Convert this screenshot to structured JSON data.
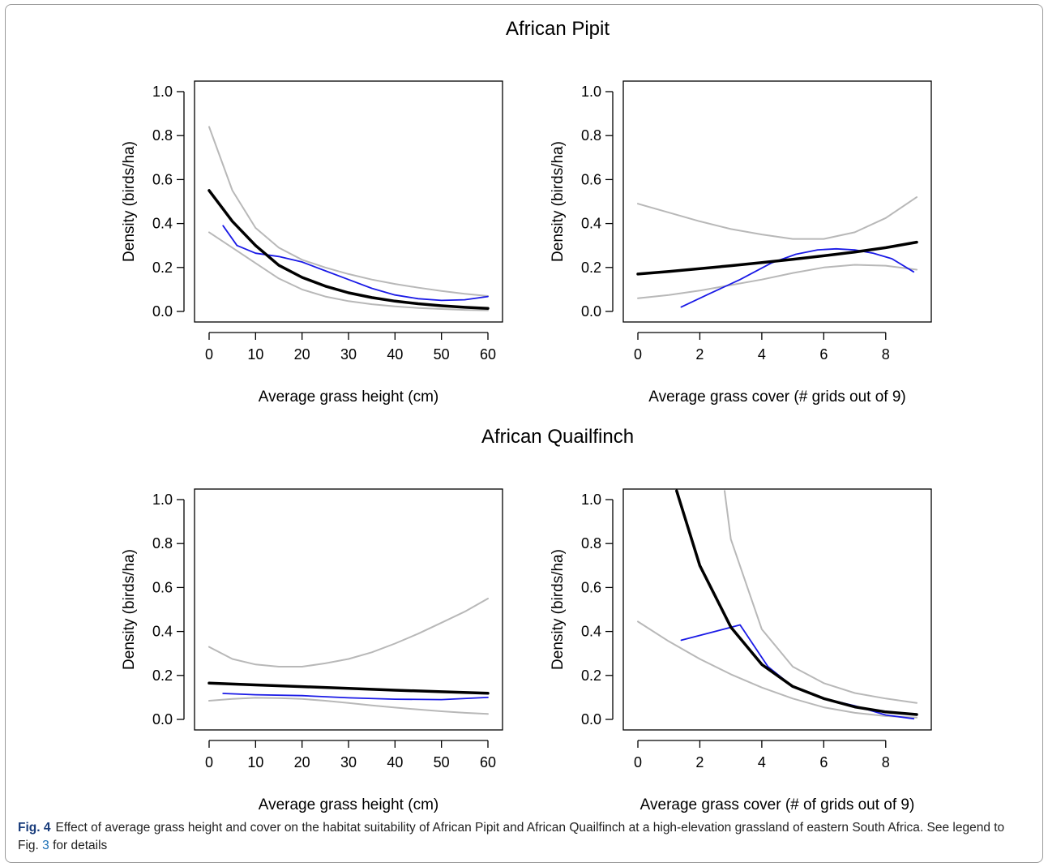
{
  "figure": {
    "section_titles": [
      "African Pipit",
      "African Quailfinch"
    ],
    "caption": {
      "label": "Fig. 4",
      "text_before": "Effect of average grass height and cover on the habitat suitability of African Pipit and African Quailfinch at a high-elevation grassland of eastern South Africa. See legend to Fig. ",
      "ref": "3",
      "text_after": " for details"
    }
  },
  "colors": {
    "fit": "#000000",
    "ci": "#b8b8b8",
    "observed": "#1a1ae6"
  },
  "chart_data": [
    {
      "type": "line",
      "panel": "African Pipit - grass height",
      "xlabel": "Average grass height (cm)",
      "ylabel": "Density (birds/ha)",
      "xlim": [
        0,
        60
      ],
      "ylim": [
        0,
        1.0
      ],
      "xticks": [
        0,
        10,
        20,
        30,
        40,
        50,
        60
      ],
      "yticks": [
        "0.0",
        "0.2",
        "0.4",
        "0.6",
        "0.8",
        "1.0"
      ],
      "grid": false,
      "series": [
        {
          "role": "fit",
          "x": [
            0,
            5,
            10,
            15,
            20,
            25,
            30,
            35,
            40,
            45,
            50,
            55,
            60
          ],
          "y": [
            0.55,
            0.41,
            0.3,
            0.21,
            0.155,
            0.115,
            0.085,
            0.063,
            0.047,
            0.035,
            0.026,
            0.019,
            0.014
          ]
        },
        {
          "role": "upper",
          "x": [
            0,
            5,
            10,
            15,
            20,
            25,
            30,
            35,
            40,
            45,
            50,
            55,
            60
          ],
          "y": [
            0.84,
            0.55,
            0.38,
            0.29,
            0.235,
            0.2,
            0.17,
            0.145,
            0.125,
            0.108,
            0.093,
            0.08,
            0.07
          ]
        },
        {
          "role": "lower",
          "x": [
            0,
            5,
            10,
            15,
            20,
            25,
            30,
            35,
            40,
            45,
            50,
            55,
            60
          ],
          "y": [
            0.36,
            0.29,
            0.22,
            0.15,
            0.1,
            0.068,
            0.047,
            0.033,
            0.023,
            0.016,
            0.011,
            0.007,
            0.005
          ]
        },
        {
          "role": "observed",
          "x": [
            3,
            6,
            10,
            15,
            20,
            25,
            30,
            35,
            40,
            45,
            50,
            55,
            60
          ],
          "y": [
            0.39,
            0.3,
            0.265,
            0.25,
            0.225,
            0.185,
            0.145,
            0.105,
            0.075,
            0.058,
            0.05,
            0.053,
            0.068
          ]
        }
      ]
    },
    {
      "type": "line",
      "panel": "African Pipit - grass cover",
      "xlabel": "Average grass cover (# grids out of 9)",
      "ylabel": "Density (birds/ha)",
      "xlim": [
        0,
        9
      ],
      "ylim": [
        0,
        1.0
      ],
      "xticks": [
        0,
        2,
        4,
        6,
        8
      ],
      "yticks": [
        "0.0",
        "0.2",
        "0.4",
        "0.6",
        "0.8",
        "1.0"
      ],
      "grid": false,
      "series": [
        {
          "role": "fit",
          "x": [
            0,
            1,
            2,
            3,
            4,
            5,
            6,
            7,
            8,
            9
          ],
          "y": [
            0.17,
            0.182,
            0.195,
            0.208,
            0.222,
            0.237,
            0.253,
            0.27,
            0.29,
            0.315
          ]
        },
        {
          "role": "upper",
          "x": [
            0,
            1,
            2,
            3,
            4,
            5,
            6,
            7,
            8,
            9
          ],
          "y": [
            0.49,
            0.45,
            0.41,
            0.375,
            0.35,
            0.33,
            0.33,
            0.36,
            0.425,
            0.52
          ]
        },
        {
          "role": "lower",
          "x": [
            0,
            1,
            2,
            3,
            4,
            5,
            6,
            7,
            8,
            9
          ],
          "y": [
            0.06,
            0.075,
            0.095,
            0.12,
            0.145,
            0.175,
            0.2,
            0.212,
            0.208,
            0.19
          ]
        },
        {
          "role": "observed",
          "x": [
            1.4,
            2.3,
            3.3,
            4.3,
            5.1,
            5.8,
            6.4,
            7.0,
            7.6,
            8.2,
            8.9
          ],
          "y": [
            0.02,
            0.08,
            0.145,
            0.22,
            0.26,
            0.28,
            0.285,
            0.28,
            0.265,
            0.24,
            0.18
          ]
        }
      ]
    },
    {
      "type": "line",
      "panel": "African Quailfinch - grass height",
      "xlabel": "Average grass height (cm)",
      "ylabel": "Density (birds/ha)",
      "xlim": [
        0,
        60
      ],
      "ylim": [
        0,
        1.0
      ],
      "xticks": [
        0,
        10,
        20,
        30,
        40,
        50,
        60
      ],
      "yticks": [
        "0.0",
        "0.2",
        "0.4",
        "0.6",
        "0.8",
        "1.0"
      ],
      "grid": false,
      "series": [
        {
          "role": "fit",
          "x": [
            0,
            10,
            20,
            30,
            40,
            50,
            60
          ],
          "y": [
            0.165,
            0.157,
            0.149,
            0.141,
            0.133,
            0.126,
            0.119
          ]
        },
        {
          "role": "upper",
          "x": [
            0,
            5,
            10,
            15,
            20,
            25,
            30,
            35,
            40,
            45,
            50,
            55,
            60
          ],
          "y": [
            0.33,
            0.275,
            0.25,
            0.24,
            0.24,
            0.255,
            0.275,
            0.305,
            0.345,
            0.39,
            0.44,
            0.49,
            0.55
          ]
        },
        {
          "role": "lower",
          "x": [
            0,
            5,
            10,
            15,
            20,
            25,
            30,
            35,
            40,
            45,
            50,
            55,
            60
          ],
          "y": [
            0.085,
            0.093,
            0.098,
            0.097,
            0.093,
            0.085,
            0.075,
            0.064,
            0.054,
            0.045,
            0.037,
            0.03,
            0.025
          ]
        },
        {
          "role": "observed",
          "x": [
            3,
            10,
            20,
            30,
            40,
            50,
            60
          ],
          "y": [
            0.118,
            0.112,
            0.108,
            0.098,
            0.092,
            0.09,
            0.1
          ]
        }
      ]
    },
    {
      "type": "line",
      "panel": "African Quailfinch - grass cover",
      "xlabel": "Average grass cover (# of grids out of 9)",
      "ylabel": "Density (birds/ha)",
      "xlim": [
        0,
        9
      ],
      "ylim": [
        0,
        1.0
      ],
      "xticks": [
        0,
        2,
        4,
        6,
        8
      ],
      "yticks": [
        "0.0",
        "0.2",
        "0.4",
        "0.6",
        "0.8",
        "1.0"
      ],
      "grid": false,
      "series": [
        {
          "role": "fit",
          "x": [
            1.25,
            2,
            3,
            4,
            5,
            6,
            7,
            8,
            9
          ],
          "y": [
            1.04,
            0.7,
            0.42,
            0.25,
            0.15,
            0.095,
            0.057,
            0.034,
            0.022
          ]
        },
        {
          "role": "upper",
          "x": [
            2.8,
            3,
            4,
            5,
            6,
            7,
            8,
            9
          ],
          "y": [
            1.04,
            0.82,
            0.41,
            0.24,
            0.165,
            0.12,
            0.095,
            0.075
          ]
        },
        {
          "role": "lower",
          "x": [
            0,
            1,
            2,
            3,
            4,
            5,
            6,
            7,
            8,
            9
          ],
          "y": [
            0.445,
            0.355,
            0.275,
            0.205,
            0.145,
            0.095,
            0.055,
            0.03,
            0.015,
            0.008
          ]
        },
        {
          "role": "observed",
          "x": [
            1.4,
            3.3,
            4.2,
            5.0,
            6.0,
            7.0,
            8.0,
            8.9
          ],
          "y": [
            0.36,
            0.43,
            0.24,
            0.15,
            0.095,
            0.062,
            0.02,
            0.003
          ]
        }
      ]
    }
  ]
}
